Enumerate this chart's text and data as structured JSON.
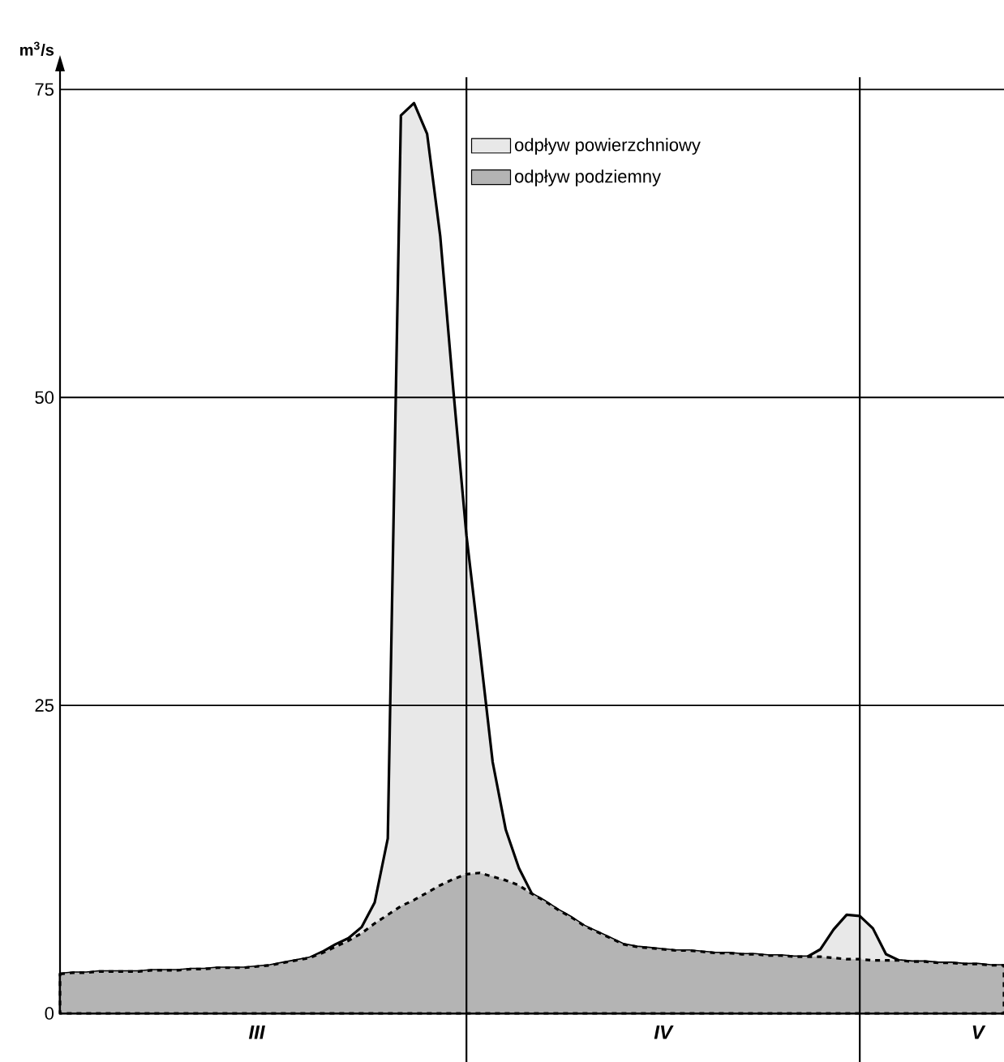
{
  "chart_data": {
    "type": "area",
    "stacked": true,
    "ylabel": "m$^{3}$/s",
    "categories": [
      null,
      null,
      null,
      null,
      null,
      null,
      null,
      null,
      null,
      null,
      null,
      null,
      null,
      null,
      null,
      "III",
      null,
      null,
      null,
      null,
      null,
      null,
      null,
      null,
      null,
      null,
      null,
      null,
      null,
      null,
      null,
      null,
      null,
      null,
      null,
      null,
      null,
      null,
      null,
      null,
      null,
      null,
      null,
      null,
      null,
      null,
      "IV",
      null,
      null,
      null,
      null,
      null,
      null,
      null,
      null,
      null,
      null,
      null,
      null,
      null,
      null,
      null,
      null,
      null,
      null,
      null,
      null,
      null,
      null,
      null,
      "V",
      null,
      null
    ],
    "series": [
      {
        "name": "odpływ podziemny",
        "color": "#b4b4b4",
        "line_style": "dashed",
        "values": [
          3.2,
          3.3,
          3.3,
          3.4,
          3.4,
          3.4,
          3.4,
          3.5,
          3.5,
          3.5,
          3.6,
          3.6,
          3.7,
          3.7,
          3.7,
          3.8,
          3.9,
          4.1,
          4.3,
          4.5,
          4.9,
          5.4,
          5.9,
          6.5,
          7.3,
          8.0,
          8.7,
          9.2,
          9.8,
          10.4,
          10.9,
          11.3,
          11.4,
          11.1,
          10.8,
          10.4,
          9.7,
          9.1,
          8.4,
          7.8,
          7.1,
          6.6,
          6.1,
          5.6,
          5.4,
          5.3,
          5.2,
          5.1,
          5.1,
          5.0,
          4.9,
          4.9,
          4.8,
          4.8,
          4.7,
          4.7,
          4.6,
          4.6,
          4.6,
          4.5,
          4.4,
          4.4,
          4.3,
          4.3,
          4.3,
          4.2,
          4.2,
          4.1,
          4.1,
          4.0,
          4.0,
          3.9,
          3.9
        ]
      },
      {
        "name": "odpływ powierzchniowy",
        "color": "#e8e8e8",
        "line_style": "solid",
        "values": [
          0,
          0,
          0,
          0,
          0,
          0,
          0,
          0,
          0,
          0,
          0,
          0,
          0,
          0,
          0,
          0,
          0,
          0,
          0,
          0,
          0.1,
          0.2,
          0.2,
          0.5,
          1.7,
          6.2,
          64.2,
          64.7,
          61.6,
          52.7,
          39.7,
          27.5,
          18.3,
          9.3,
          4.1,
          1.4,
          0,
          0,
          0,
          0,
          0,
          0,
          0,
          0,
          0,
          0,
          0,
          0,
          0,
          0,
          0,
          0,
          0,
          0,
          0,
          0,
          0,
          0,
          0.6,
          2.3,
          3.6,
          3.5,
          2.6,
          0.5,
          0,
          0,
          0,
          0,
          0,
          0,
          0,
          0,
          0
        ]
      }
    ],
    "ylim": [
      0,
      77
    ],
    "yticks": [
      0,
      25,
      50,
      75
    ],
    "grid": "y",
    "legend": "top right"
  }
}
